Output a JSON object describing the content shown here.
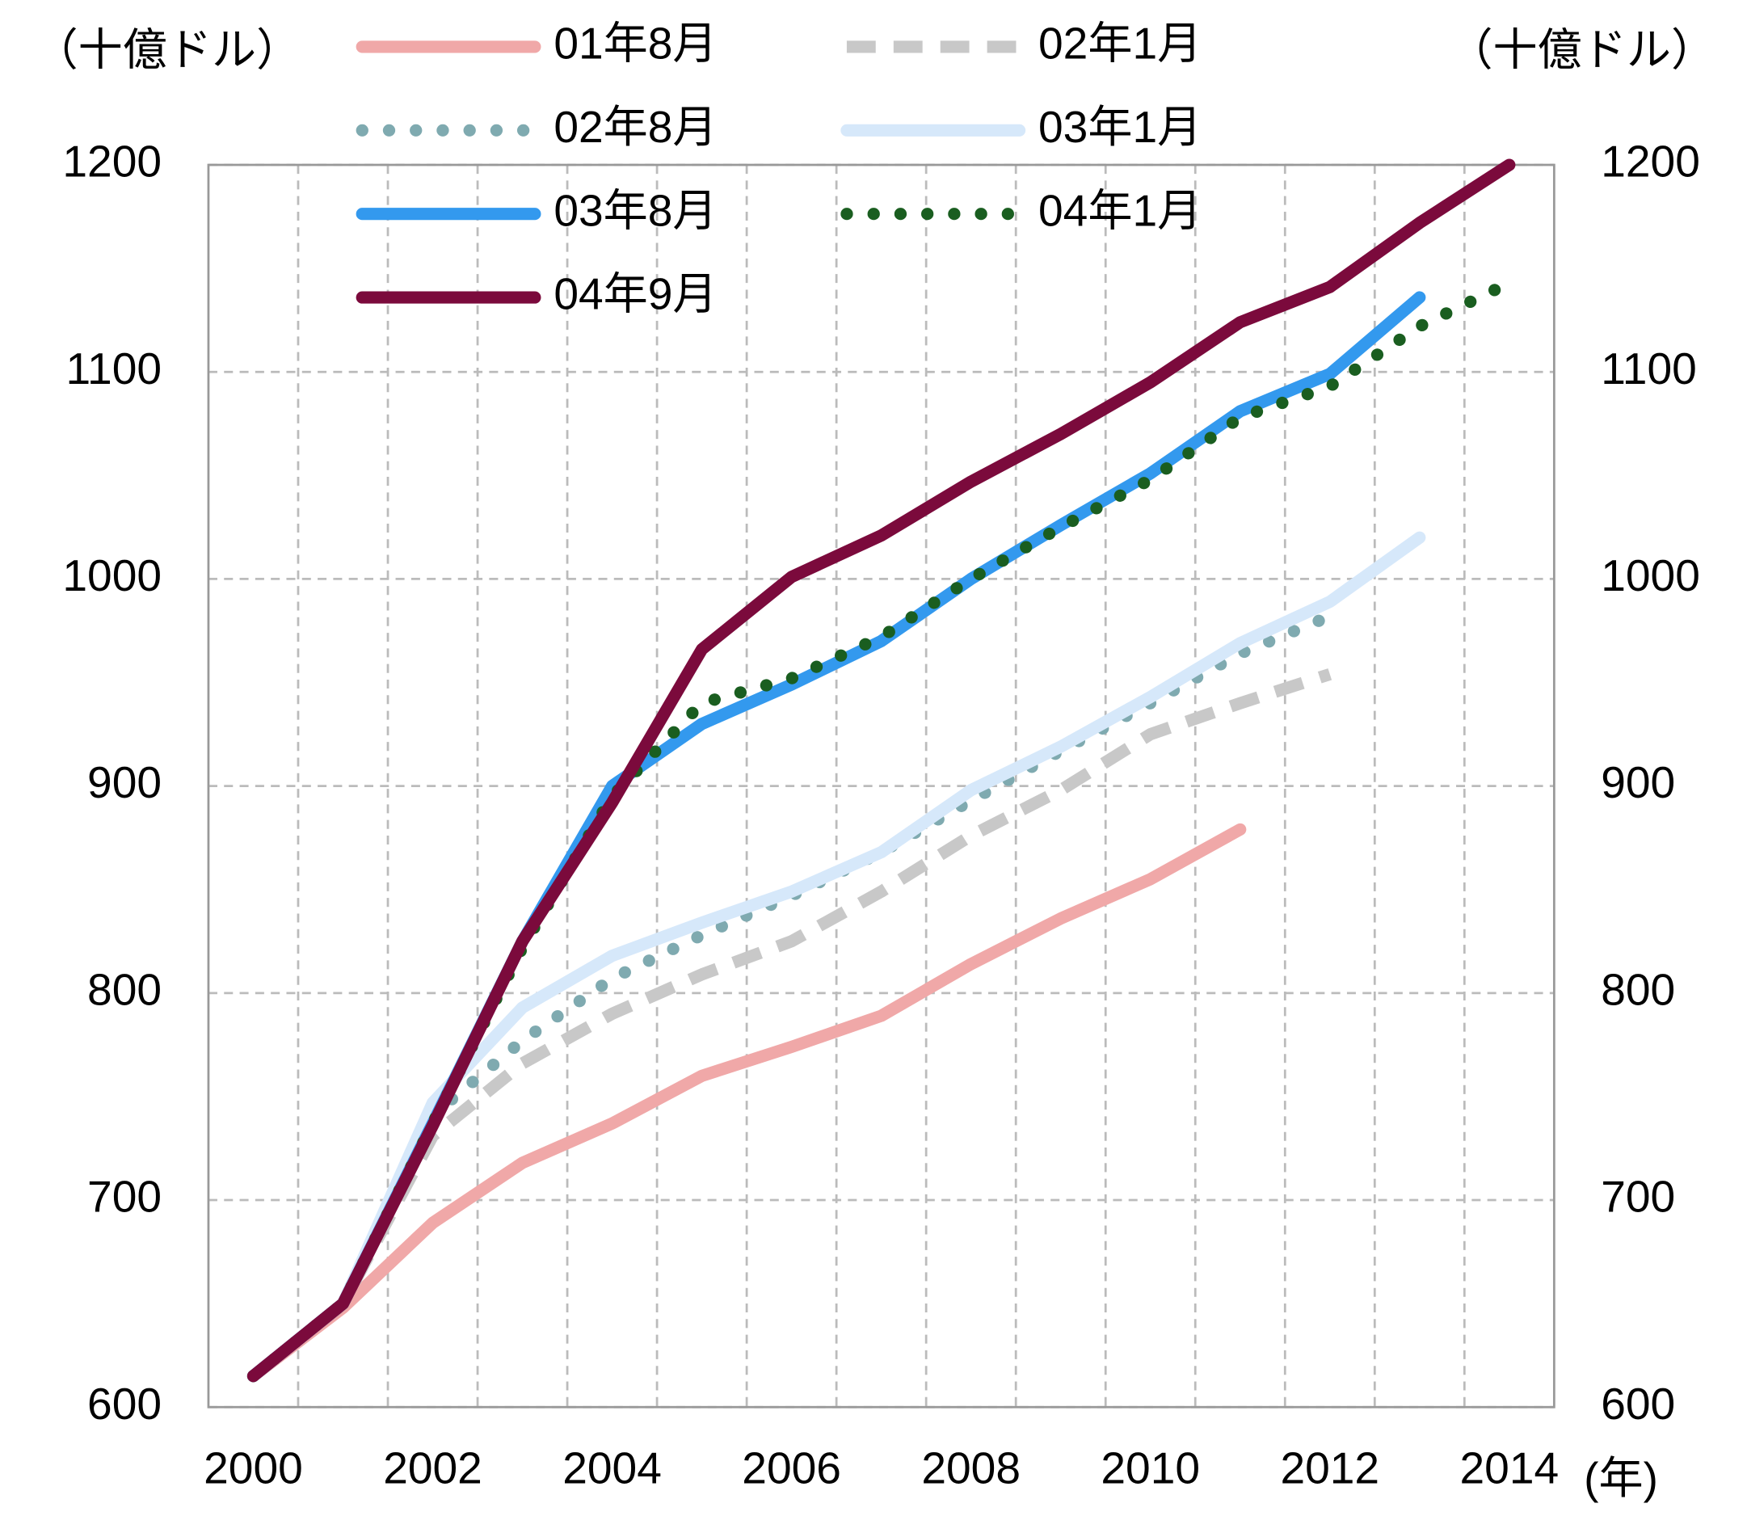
{
  "chart_data": {
    "type": "line",
    "y_label": "（十億ドル）",
    "y2_label": "（十億ドル）",
    "x_unit": "(年)",
    "categories": [
      "2000",
      null,
      "2002",
      null,
      "2004",
      null,
      "2006",
      null,
      "2008",
      null,
      "2010",
      null,
      "2012",
      null,
      "2014"
    ],
    "ylim": [
      600,
      1200
    ],
    "yticks": [
      600,
      700,
      800,
      900,
      1000,
      1100,
      1200
    ],
    "y2lim": [
      600,
      1200
    ],
    "y2ticks": [
      600,
      700,
      800,
      900,
      1000,
      1100,
      1200
    ],
    "grid": true,
    "series": [
      {
        "name": "01年8月",
        "color": "#f0a8a8",
        "style": "solid",
        "values": [
          615,
          648,
          689,
          718,
          737,
          760,
          774,
          789,
          814,
          836,
          855,
          879,
          null,
          null,
          null
        ]
      },
      {
        "name": "02年1月",
        "color": "#c8c8c8",
        "style": "dashed",
        "values": [
          615,
          650,
          731,
          766,
          790,
          809,
          825,
          849,
          876,
          898,
          925,
          940,
          954,
          null,
          null
        ]
      },
      {
        "name": "02年8月",
        "color": "#7faab0",
        "style": "dotted",
        "values": [
          615,
          650,
          741,
          777,
          807,
          828,
          847,
          868,
          893,
          917,
          940,
          964,
          982,
          null,
          null
        ]
      },
      {
        "name": "03年1月",
        "color": "#d6e8fa",
        "style": "solid",
        "values": [
          615,
          650,
          747,
          793,
          818,
          834,
          849,
          868,
          898,
          919,
          943,
          969,
          989,
          1020,
          null
        ]
      },
      {
        "name": "03年8月",
        "color": "#3399ee",
        "style": "solid",
        "values": [
          615,
          650,
          737,
          825,
          900,
          930,
          949,
          970,
          1000,
          1026,
          1051,
          1081,
          1099,
          1136,
          null
        ]
      },
      {
        "name": "04年1月",
        "color": "#1a5e20",
        "style": "dotted",
        "values": [
          615,
          650,
          737,
          822,
          895,
          940,
          952,
          972,
          1000,
          1025,
          1048,
          1078,
          1093,
          1122,
          1143
        ]
      },
      {
        "name": "04年9月",
        "color": "#7b0a3c",
        "style": "solid",
        "values": [
          615,
          650,
          736,
          825,
          892,
          966,
          1001,
          1021,
          1047,
          1070,
          1095,
          1124,
          1141,
          1172,
          1200
        ]
      }
    ]
  }
}
